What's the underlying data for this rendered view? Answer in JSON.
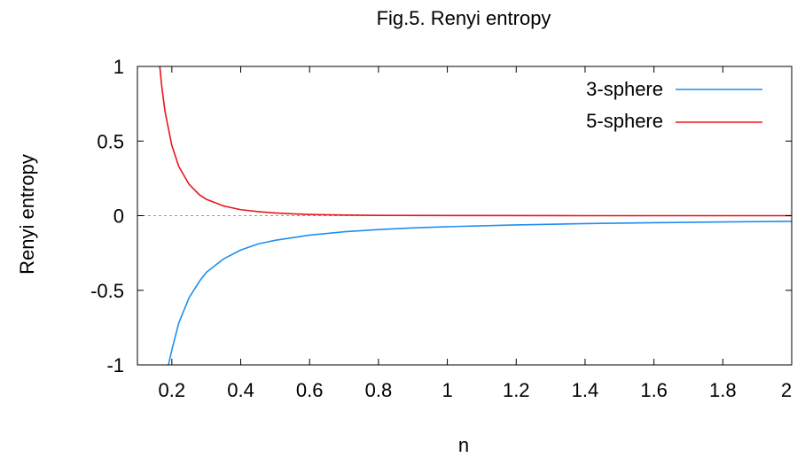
{
  "chart_data": {
    "type": "line",
    "title": "Fig.5. Renyi entropy",
    "xlabel": "n",
    "ylabel": "Renyi entropy",
    "xlim": [
      0.1,
      2
    ],
    "ylim": [
      -1,
      1
    ],
    "xticks": [
      "0.2",
      "0.4",
      "0.6",
      "0.8",
      "1",
      "1.2",
      "1.4",
      "1.6",
      "1.8",
      "2"
    ],
    "yticks": [
      "1",
      "0.5",
      "0",
      "-0.5",
      "-1"
    ],
    "zero_line": true,
    "grid": false,
    "legend_position": "top-right",
    "series": [
      {
        "name": "3-sphere",
        "color": "#1f8ef0",
        "x": [
          0.19,
          0.2,
          0.22,
          0.25,
          0.28,
          0.3,
          0.35,
          0.4,
          0.45,
          0.5,
          0.6,
          0.7,
          0.8,
          0.9,
          1.0,
          1.2,
          1.4,
          1.6,
          1.8,
          2.0
        ],
        "y": [
          -1.0,
          -0.9,
          -0.72,
          -0.55,
          -0.44,
          -0.38,
          -0.29,
          -0.23,
          -0.19,
          -0.165,
          -0.13,
          -0.108,
          -0.093,
          -0.082,
          -0.074,
          -0.062,
          -0.053,
          -0.047,
          -0.042,
          -0.038
        ]
      },
      {
        "name": "5-sphere",
        "color": "#e8141c",
        "x": [
          0.165,
          0.17,
          0.18,
          0.2,
          0.22,
          0.25,
          0.28,
          0.3,
          0.35,
          0.4,
          0.45,
          0.5,
          0.55,
          0.6,
          0.7,
          0.8,
          1.0,
          1.4,
          2.0
        ],
        "y": [
          1.0,
          0.88,
          0.7,
          0.47,
          0.33,
          0.21,
          0.14,
          0.11,
          0.065,
          0.04,
          0.027,
          0.018,
          0.012,
          0.008,
          0.004,
          0.002,
          0.001,
          0.0,
          0.0
        ]
      }
    ]
  }
}
